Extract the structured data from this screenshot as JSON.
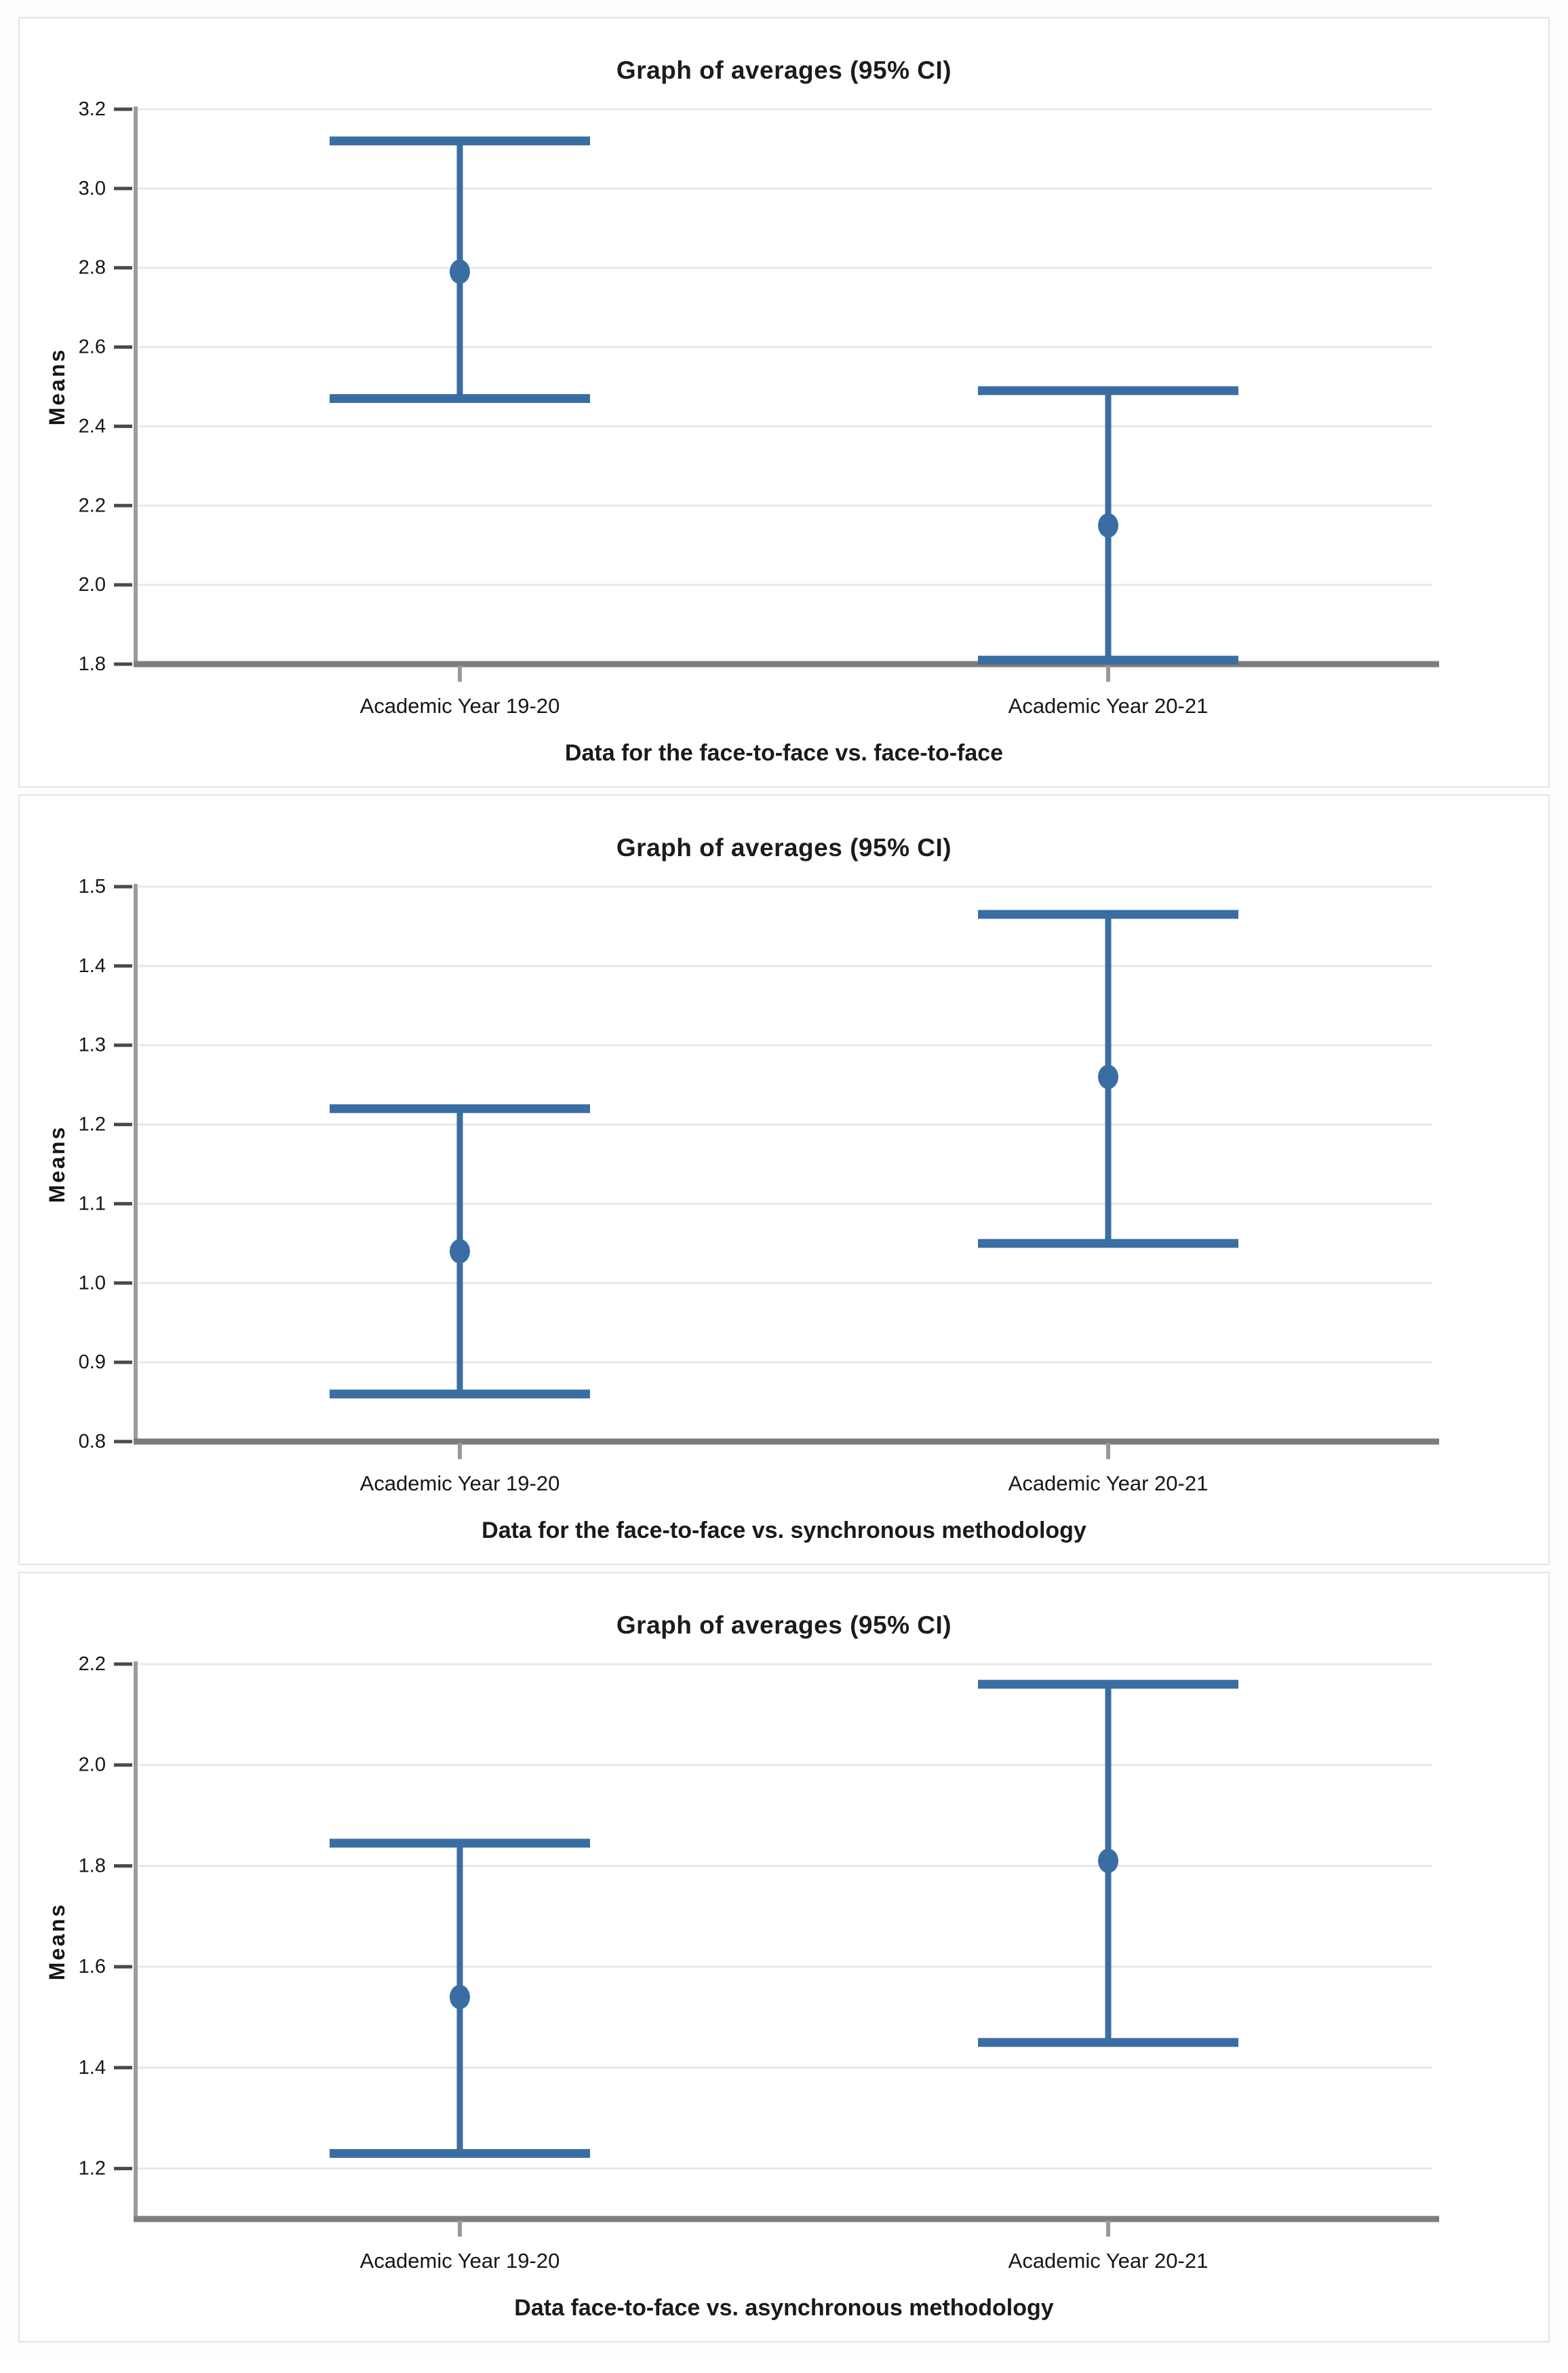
{
  "page": {
    "background": "#fdfdfd",
    "card_background": "#ffffff",
    "card_border": "#e4e4e4"
  },
  "colors": {
    "errorbar_blue": "#3A6EA3",
    "gridline": "#e8e8e8",
    "axis_spine": "#9b9b9b",
    "axis_bottom": "#7d7d7d",
    "tick_mark": "#4a4a4a",
    "x_tick_mark": "#999999",
    "title_text": "#1c1c1c",
    "label_text": "#161616"
  },
  "chart_data": [
    {
      "type": "scatter",
      "subtype": "error-bar-means",
      "title": "Graph of averages (95% CI)",
      "ylabel": "Means",
      "caption": "Data for the face-to-face vs. face-to-face",
      "categories": [
        "Academic Year 19-20",
        "Academic Year 20-21"
      ],
      "points": [
        {
          "category": "Academic Year 19-20",
          "mean": 2.79,
          "ci_low": 2.47,
          "ci_high": 3.12
        },
        {
          "category": "Academic Year 20-21",
          "mean": 2.15,
          "ci_low": 1.81,
          "ci_high": 2.49
        }
      ],
      "yticks": [
        1.8,
        2.0,
        2.2,
        2.4,
        2.6,
        2.8,
        3.0,
        3.2
      ],
      "ylim": [
        1.8,
        3.2
      ],
      "grid": true,
      "legend": "none"
    },
    {
      "type": "scatter",
      "subtype": "error-bar-means",
      "title": "Graph of averages (95% CI)",
      "ylabel": "Means",
      "caption": "Data for the face-to-face vs. synchronous methodology",
      "categories": [
        "Academic Year 19-20",
        "Academic Year 20-21"
      ],
      "points": [
        {
          "category": "Academic Year 19-20",
          "mean": 1.04,
          "ci_low": 0.86,
          "ci_high": 1.22
        },
        {
          "category": "Academic Year 20-21",
          "mean": 1.26,
          "ci_low": 1.05,
          "ci_high": 1.465
        }
      ],
      "yticks": [
        0.8,
        0.9,
        1.0,
        1.1,
        1.2,
        1.3,
        1.4,
        1.5
      ],
      "ylim": [
        0.8,
        1.5
      ],
      "grid": true,
      "legend": "none"
    },
    {
      "type": "scatter",
      "subtype": "error-bar-means",
      "title": "Graph of averages (95% CI)",
      "ylabel": "Means",
      "caption": "Data face-to-face vs. asynchronous methodology",
      "categories": [
        "Academic Year 19-20",
        "Academic Year 20-21"
      ],
      "points": [
        {
          "category": "Academic Year 19-20",
          "mean": 1.54,
          "ci_low": 1.23,
          "ci_high": 1.845
        },
        {
          "category": "Academic Year 20-21",
          "mean": 1.81,
          "ci_low": 1.45,
          "ci_high": 2.16
        }
      ],
      "yticks": [
        1.2,
        1.4,
        1.6,
        1.8,
        2.0,
        2.2
      ],
      "ylim": [
        1.1,
        2.2
      ],
      "grid": true,
      "legend": "none"
    }
  ]
}
